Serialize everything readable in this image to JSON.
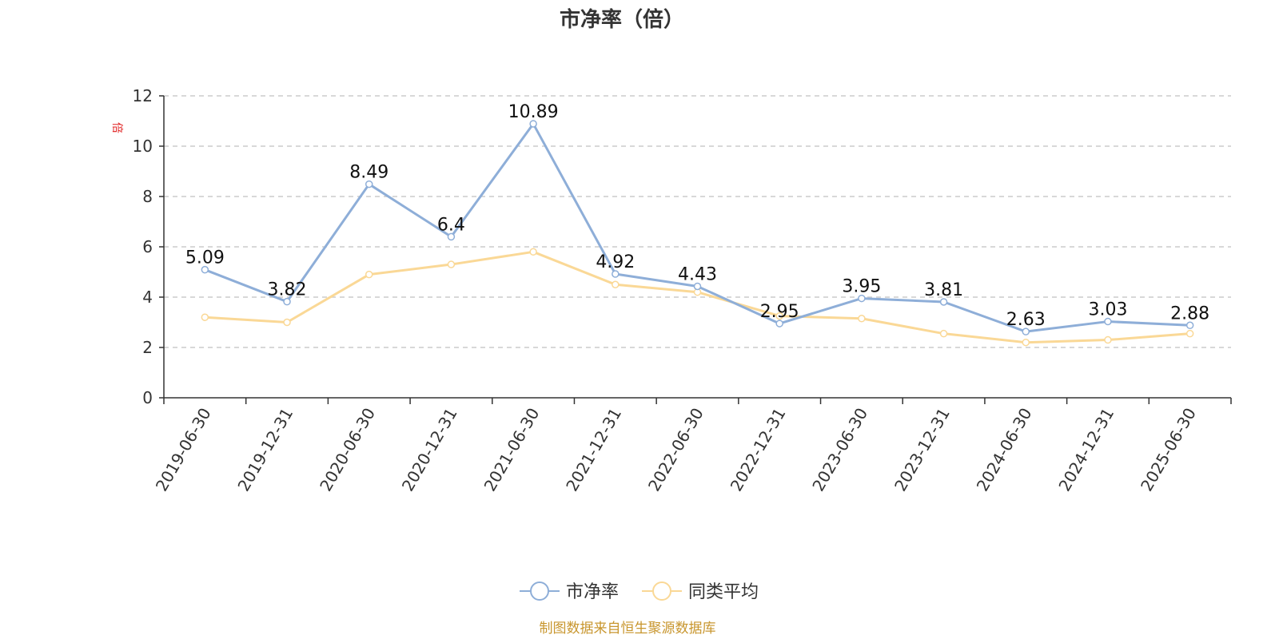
{
  "chart_data": {
    "type": "line",
    "title": "市净率（倍）",
    "ylabel": "倍",
    "ylim": [
      0,
      12
    ],
    "yticks": [
      0,
      2,
      4,
      6,
      8,
      10,
      12
    ],
    "grid": "horizontal-dashed",
    "legend_position": "bottom-center",
    "categories": [
      "2019-06-30",
      "2019-12-31",
      "2020-06-30",
      "2020-12-31",
      "2021-06-30",
      "2021-12-31",
      "2022-06-30",
      "2022-12-31",
      "2023-06-30",
      "2023-12-31",
      "2024-06-30",
      "2024-12-31",
      "2025-06-30"
    ],
    "series": [
      {
        "name": "市净率",
        "color": "#8eaed8",
        "show_labels": true,
        "values": [
          5.09,
          3.82,
          8.49,
          6.4,
          10.89,
          4.92,
          4.43,
          2.95,
          3.95,
          3.81,
          2.63,
          3.03,
          2.88
        ],
        "labels": [
          "5.09",
          "3.82",
          "8.49",
          "6.4",
          "10.89",
          "4.92",
          "4.43",
          "2.95",
          "3.95",
          "3.81",
          "2.63",
          "3.03",
          "2.88"
        ]
      },
      {
        "name": "同类平均",
        "color": "#fad896",
        "show_labels": false,
        "values": [
          3.2,
          3.0,
          4.9,
          5.3,
          5.8,
          4.5,
          4.2,
          3.25,
          3.15,
          2.55,
          2.2,
          2.3,
          2.55
        ]
      }
    ],
    "footer": "制图数据来自恒生聚源数据库",
    "footer_color": "#c8962e",
    "unit_color": "#e02020"
  }
}
